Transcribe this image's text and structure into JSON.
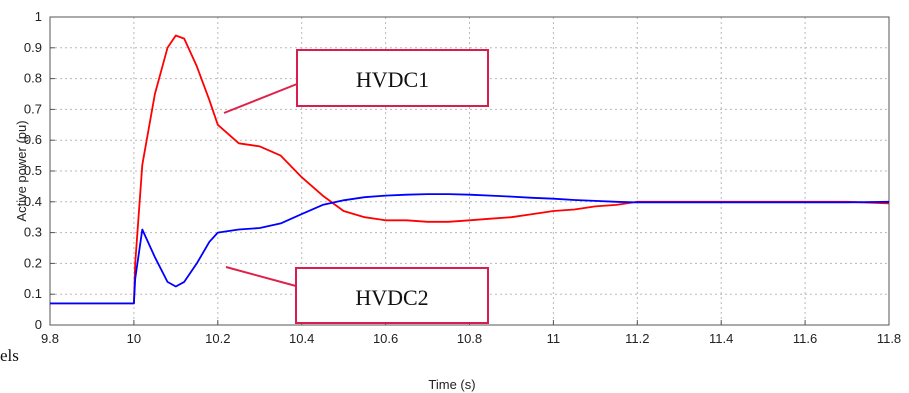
{
  "chart_data": {
    "type": "line",
    "title": "",
    "xlabel": "Time (s)",
    "ylabel": "Active power (pu)",
    "xlim": [
      9.8,
      11.8
    ],
    "ylim": [
      0,
      1
    ],
    "x_ticks": [
      "9.8",
      "10",
      "10.2",
      "10.4",
      "10.6",
      "10.8",
      "11",
      "11.2",
      "11.4",
      "11.6",
      "11.8"
    ],
    "y_ticks": [
      "0",
      "0.1",
      "0.2",
      "0.3",
      "0.4",
      "0.5",
      "0.6",
      "0.7",
      "0.8",
      "0.9",
      "1"
    ],
    "grid": true,
    "series": [
      {
        "name": "HVDC1",
        "color": "#ff0000",
        "x": [
          9.8,
          9.9,
          10.0,
          10.003,
          10.02,
          10.05,
          10.08,
          10.1,
          10.12,
          10.15,
          10.18,
          10.2,
          10.25,
          10.3,
          10.35,
          10.4,
          10.45,
          10.5,
          10.55,
          10.6,
          10.65,
          10.7,
          10.75,
          10.8,
          10.85,
          10.9,
          10.95,
          11.0,
          11.05,
          11.1,
          11.15,
          11.2,
          11.3,
          11.4,
          11.5,
          11.6,
          11.7,
          11.8
        ],
        "y": [
          0.07,
          0.07,
          0.07,
          0.2,
          0.52,
          0.75,
          0.9,
          0.94,
          0.93,
          0.84,
          0.73,
          0.65,
          0.59,
          0.58,
          0.55,
          0.48,
          0.42,
          0.37,
          0.35,
          0.34,
          0.34,
          0.335,
          0.335,
          0.34,
          0.345,
          0.35,
          0.36,
          0.37,
          0.375,
          0.385,
          0.39,
          0.4,
          0.4,
          0.4,
          0.4,
          0.4,
          0.4,
          0.395
        ]
      },
      {
        "name": "HVDC2",
        "color": "#0000ff",
        "x": [
          9.8,
          9.9,
          10.0,
          10.003,
          10.02,
          10.05,
          10.08,
          10.1,
          10.12,
          10.15,
          10.18,
          10.2,
          10.25,
          10.3,
          10.35,
          10.4,
          10.45,
          10.5,
          10.55,
          10.6,
          10.65,
          10.7,
          10.75,
          10.8,
          10.85,
          10.9,
          10.95,
          11.0,
          11.05,
          11.1,
          11.15,
          11.2,
          11.3,
          11.4,
          11.5,
          11.6,
          11.7,
          11.8
        ],
        "y": [
          0.07,
          0.07,
          0.07,
          0.15,
          0.31,
          0.22,
          0.14,
          0.125,
          0.14,
          0.2,
          0.27,
          0.3,
          0.31,
          0.315,
          0.33,
          0.36,
          0.39,
          0.405,
          0.415,
          0.42,
          0.423,
          0.425,
          0.425,
          0.423,
          0.42,
          0.417,
          0.413,
          0.41,
          0.406,
          0.403,
          0.4,
          0.398,
          0.398,
          0.398,
          0.398,
          0.398,
          0.398,
          0.4
        ]
      }
    ],
    "annotations": [
      {
        "text": "HVDC1",
        "series": "HVDC1"
      },
      {
        "text": "HVDC2",
        "series": "HVDC2"
      }
    ]
  },
  "stray_text": "els"
}
